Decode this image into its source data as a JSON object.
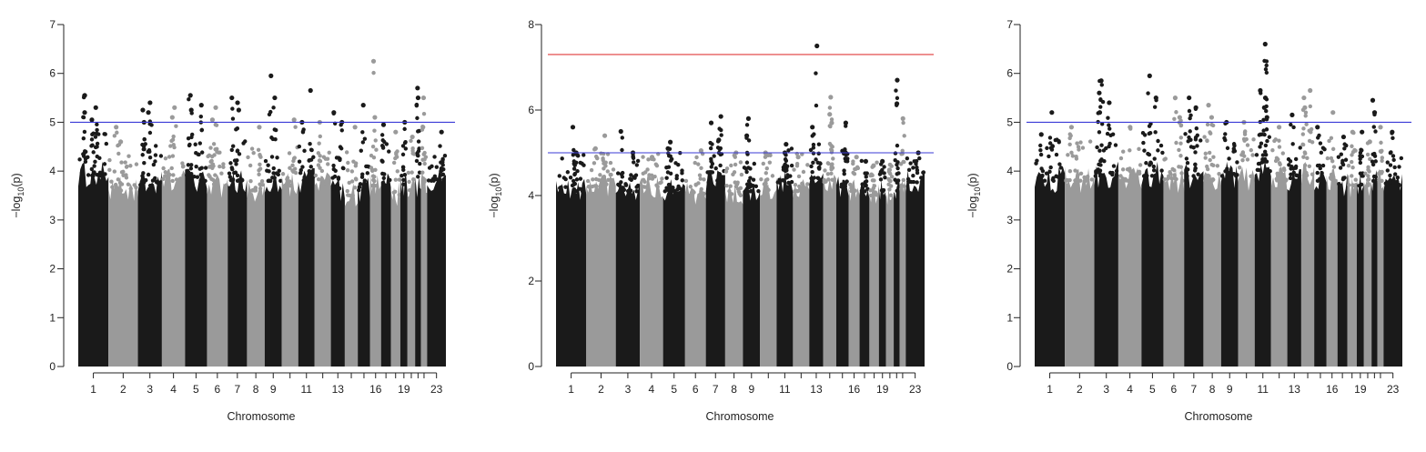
{
  "chart_data": [
    {
      "type": "scatter",
      "subtype": "manhattan",
      "title": "",
      "xlabel": "Chromosome",
      "ylabel": "−log10(p)",
      "ylim": [
        0,
        7
      ],
      "yticks": [
        "0",
        "1",
        "2",
        "3",
        "4",
        "5",
        "6",
        "7"
      ],
      "xtick_labels": [
        "1",
        "2",
        "3",
        "4",
        "5",
        "6",
        "7",
        "8",
        "9",
        "11",
        "13",
        "16",
        "19",
        "23"
      ],
      "thresholds": [
        {
          "value": 5.0,
          "color": "#3a3ad6"
        }
      ],
      "colors": [
        "#1a1a1a",
        "#9a9a9a"
      ],
      "chromosomes": [
        {
          "chr": "1",
          "baseline": 4.0,
          "peaks": [
            5.55,
            5.3,
            5.2,
            5.05
          ]
        },
        {
          "chr": "2",
          "baseline": 3.7,
          "peaks": [
            4.9,
            4.6
          ]
        },
        {
          "chr": "3",
          "baseline": 3.8,
          "peaks": [
            5.4,
            5.25,
            5.2,
            5.0
          ]
        },
        {
          "chr": "4",
          "baseline": 3.9,
          "peaks": [
            5.1,
            5.3
          ]
        },
        {
          "chr": "5",
          "baseline": 3.9,
          "peaks": [
            5.55,
            5.35,
            5.25
          ]
        },
        {
          "chr": "6",
          "baseline": 3.8,
          "peaks": [
            5.3,
            5.05
          ]
        },
        {
          "chr": "7",
          "baseline": 3.9,
          "peaks": [
            5.5,
            5.4,
            5.25
          ]
        },
        {
          "chr": "8",
          "baseline": 3.7,
          "peaks": [
            4.9
          ]
        },
        {
          "chr": "9",
          "baseline": 3.9,
          "peaks": [
            5.95,
            5.5
          ]
        },
        {
          "chr": "10",
          "baseline": 3.8,
          "peaks": [
            5.05
          ]
        },
        {
          "chr": "11",
          "baseline": 3.9,
          "peaks": [
            5.65,
            5.0
          ]
        },
        {
          "chr": "12",
          "baseline": 3.8,
          "peaks": [
            5.0
          ]
        },
        {
          "chr": "13",
          "baseline": 3.7,
          "peaks": [
            5.2,
            5.0
          ]
        },
        {
          "chr": "14",
          "baseline": 3.6,
          "peaks": [
            4.9
          ]
        },
        {
          "chr": "15",
          "baseline": 3.7,
          "peaks": [
            5.35
          ]
        },
        {
          "chr": "16",
          "baseline": 3.8,
          "peaks": [
            6.25,
            5.1
          ]
        },
        {
          "chr": "17",
          "baseline": 3.8,
          "peaks": [
            4.95
          ]
        },
        {
          "chr": "18",
          "baseline": 3.6,
          "peaks": [
            4.8
          ]
        },
        {
          "chr": "19",
          "baseline": 3.8,
          "peaks": [
            5.0
          ]
        },
        {
          "chr": "20",
          "baseline": 3.7,
          "peaks": [
            4.7
          ]
        },
        {
          "chr": "21",
          "baseline": 3.7,
          "peaks": [
            5.7,
            5.5
          ]
        },
        {
          "chr": "22",
          "baseline": 3.8,
          "peaks": [
            5.5,
            4.9
          ]
        },
        {
          "chr": "23",
          "baseline": 3.9,
          "peaks": [
            4.8
          ]
        }
      ]
    },
    {
      "type": "scatter",
      "subtype": "manhattan",
      "title": "",
      "xlabel": "Chromosome",
      "ylabel": "−log10(p)",
      "ylim": [
        0,
        8
      ],
      "yticks": [
        "0",
        "2",
        "4",
        "6",
        "8"
      ],
      "xtick_labels": [
        "1",
        "2",
        "3",
        "4",
        "5",
        "6",
        "7",
        "8",
        "9",
        "11",
        "13",
        "16",
        "19",
        "23"
      ],
      "thresholds": [
        {
          "value": 7.3,
          "color": "#e03a3a"
        },
        {
          "value": 5.0,
          "color": "#3a3ad6"
        }
      ],
      "colors": [
        "#1a1a1a",
        "#9a9a9a"
      ],
      "chromosomes": [
        {
          "chr": "1",
          "baseline": 4.2,
          "peaks": [
            5.6,
            5.0
          ]
        },
        {
          "chr": "2",
          "baseline": 4.3,
          "peaks": [
            5.4,
            5.1
          ]
        },
        {
          "chr": "3",
          "baseline": 4.2,
          "peaks": [
            5.5,
            5.0
          ]
        },
        {
          "chr": "4",
          "baseline": 4.3,
          "peaks": [
            4.9
          ]
        },
        {
          "chr": "5",
          "baseline": 4.2,
          "peaks": [
            5.25,
            5.1
          ]
        },
        {
          "chr": "6",
          "baseline": 4.1,
          "peaks": [
            5.05
          ]
        },
        {
          "chr": "7",
          "baseline": 4.4,
          "peaks": [
            5.85,
            5.7,
            5.3
          ]
        },
        {
          "chr": "8",
          "baseline": 4.1,
          "peaks": [
            5.0
          ]
        },
        {
          "chr": "9",
          "baseline": 4.2,
          "peaks": [
            5.8,
            5.4
          ]
        },
        {
          "chr": "10",
          "baseline": 4.2,
          "peaks": [
            5.0
          ]
        },
        {
          "chr": "11",
          "baseline": 4.4,
          "peaks": [
            5.2,
            5.0
          ]
        },
        {
          "chr": "12",
          "baseline": 4.2,
          "peaks": [
            4.9
          ]
        },
        {
          "chr": "13",
          "baseline": 4.5,
          "peaks": [
            7.5,
            5.6
          ]
        },
        {
          "chr": "14",
          "baseline": 4.4,
          "peaks": [
            6.3,
            5.9,
            5.7
          ]
        },
        {
          "chr": "15",
          "baseline": 4.3,
          "peaks": [
            5.7,
            5.0
          ]
        },
        {
          "chr": "16",
          "baseline": 4.2,
          "peaks": [
            4.9
          ]
        },
        {
          "chr": "17",
          "baseline": 4.2,
          "peaks": [
            4.8
          ]
        },
        {
          "chr": "18",
          "baseline": 4.1,
          "peaks": [
            4.7
          ]
        },
        {
          "chr": "19",
          "baseline": 4.2,
          "peaks": [
            4.8
          ]
        },
        {
          "chr": "20",
          "baseline": 4.1,
          "peaks": [
            4.6
          ]
        },
        {
          "chr": "21",
          "baseline": 4.2,
          "peaks": [
            6.7,
            6.15
          ]
        },
        {
          "chr": "22",
          "baseline": 4.3,
          "peaks": [
            5.8
          ]
        },
        {
          "chr": "23",
          "baseline": 4.4,
          "peaks": [
            5.0
          ]
        }
      ]
    },
    {
      "type": "scatter",
      "subtype": "manhattan",
      "title": "",
      "xlabel": "Chromosome",
      "ylabel": "−log10(p)",
      "ylim": [
        0,
        7
      ],
      "yticks": [
        "0",
        "1",
        "2",
        "3",
        "4",
        "5",
        "6",
        "7"
      ],
      "xtick_labels": [
        "1",
        "2",
        "3",
        "4",
        "5",
        "6",
        "7",
        "8",
        "9",
        "11",
        "13",
        "16",
        "19",
        "23"
      ],
      "thresholds": [
        {
          "value": 5.0,
          "color": "#3a3ad6"
        }
      ],
      "colors": [
        "#1a1a1a",
        "#9a9a9a"
      ],
      "chromosomes": [
        {
          "chr": "1",
          "baseline": 3.9,
          "peaks": [
            5.2,
            4.75
          ]
        },
        {
          "chr": "2",
          "baseline": 3.9,
          "peaks": [
            4.9
          ]
        },
        {
          "chr": "3",
          "baseline": 4.0,
          "peaks": [
            5.85,
            5.6,
            5.4,
            5.2
          ]
        },
        {
          "chr": "4",
          "baseline": 3.9,
          "peaks": [
            4.9
          ]
        },
        {
          "chr": "5",
          "baseline": 4.0,
          "peaks": [
            5.95,
            5.5
          ]
        },
        {
          "chr": "6",
          "baseline": 3.9,
          "peaks": [
            5.5,
            5.1
          ]
        },
        {
          "chr": "7",
          "baseline": 4.0,
          "peaks": [
            5.5,
            5.3
          ]
        },
        {
          "chr": "8",
          "baseline": 3.9,
          "peaks": [
            5.35,
            5.1
          ]
        },
        {
          "chr": "9",
          "baseline": 4.0,
          "peaks": [
            5.0
          ]
        },
        {
          "chr": "10",
          "baseline": 3.9,
          "peaks": [
            5.0
          ]
        },
        {
          "chr": "11",
          "baseline": 4.1,
          "peaks": [
            6.6,
            5.65,
            5.5,
            5.3,
            5.1
          ]
        },
        {
          "chr": "12",
          "baseline": 3.9,
          "peaks": [
            4.9
          ]
        },
        {
          "chr": "13",
          "baseline": 3.9,
          "peaks": [
            5.15
          ]
        },
        {
          "chr": "14",
          "baseline": 4.0,
          "peaks": [
            5.65,
            5.5,
            5.3
          ]
        },
        {
          "chr": "15",
          "baseline": 3.9,
          "peaks": [
            4.9
          ]
        },
        {
          "chr": "16",
          "baseline": 3.9,
          "peaks": [
            5.2
          ]
        },
        {
          "chr": "17",
          "baseline": 3.8,
          "peaks": [
            4.7
          ]
        },
        {
          "chr": "18",
          "baseline": 3.8,
          "peaks": [
            4.8
          ]
        },
        {
          "chr": "19",
          "baseline": 3.8,
          "peaks": [
            4.8
          ]
        },
        {
          "chr": "20",
          "baseline": 3.8,
          "peaks": [
            4.6
          ]
        },
        {
          "chr": "21",
          "baseline": 3.9,
          "peaks": [
            5.45,
            5.2
          ]
        },
        {
          "chr": "22",
          "baseline": 3.9,
          "peaks": [
            4.9
          ]
        },
        {
          "chr": "23",
          "baseline": 3.8,
          "peaks": [
            4.8
          ]
        }
      ]
    }
  ]
}
